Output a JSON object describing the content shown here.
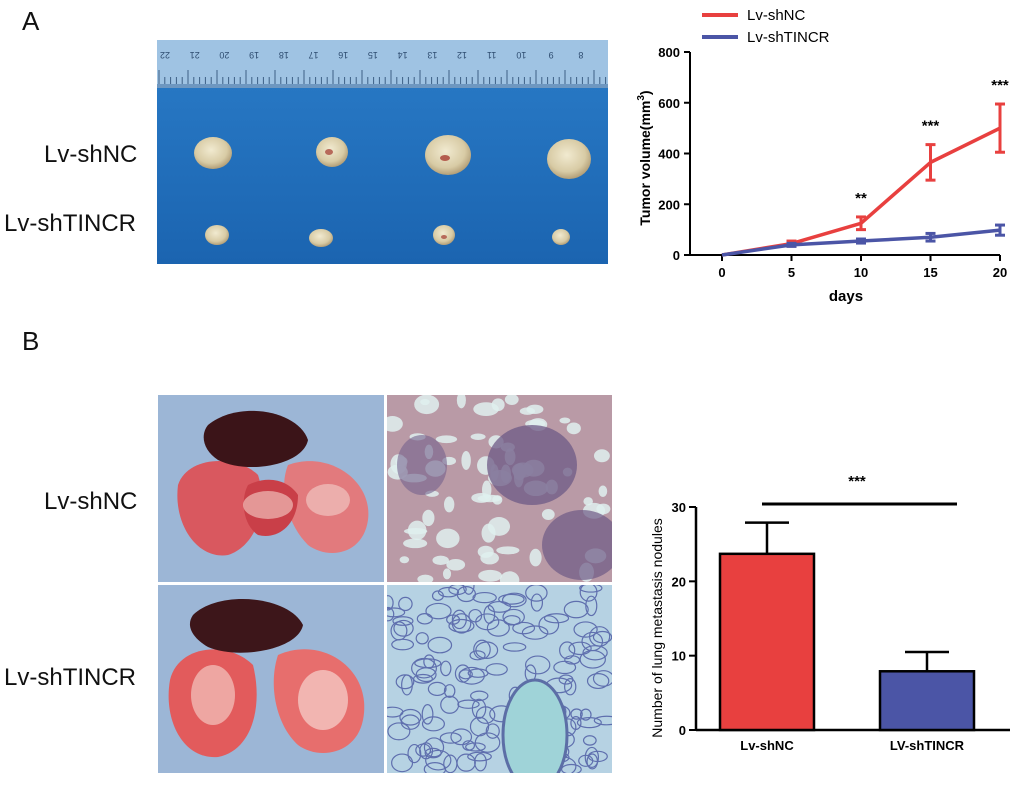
{
  "panels": {
    "a_letter": "A",
    "b_letter": "B"
  },
  "photo_a": {
    "row_labels": [
      "Lv-shNC",
      "Lv-shTINCR"
    ],
    "ruler_ticks": [
      "22",
      "21",
      "20",
      "19",
      "18",
      "17",
      "16",
      "15",
      "14",
      "13",
      "12",
      "11",
      "10",
      "9",
      "8"
    ]
  },
  "photo_b": {
    "row_labels": [
      "Lv-shNC",
      "Lv-shTINCR"
    ]
  },
  "colors": {
    "shnc": "#e8403f",
    "shtincr": "#4b55a6",
    "photo_blue": "#1f6fbf",
    "ruler": "#8fb6d9"
  },
  "chart_data": [
    {
      "type": "line",
      "title": "",
      "xlabel": "days",
      "ylabel": "Tumor volume(mm",
      "ylabel_sup": "3",
      "ylabel_close": ")",
      "x": [
        0,
        5,
        10,
        15,
        20
      ],
      "xticks": [
        "0",
        "5",
        "10",
        "15",
        "20"
      ],
      "yticks": [
        "0",
        "200",
        "400",
        "600",
        "800"
      ],
      "ylim": [
        0,
        800
      ],
      "xlim": [
        0,
        20
      ],
      "legend": "top-left",
      "series": [
        {
          "name": "Lv-shNC",
          "values": [
            0,
            45,
            125,
            365,
            500
          ],
          "errors": [
            0,
            10,
            25,
            70,
            95
          ],
          "color": "#e8403f"
        },
        {
          "name": "Lv-shTINCR",
          "values": [
            0,
            40,
            55,
            70,
            98
          ],
          "errors": [
            0,
            6,
            8,
            15,
            20
          ],
          "color": "#4b55a6"
        }
      ],
      "annotations": [
        {
          "x": 10,
          "label": "**"
        },
        {
          "x": 15,
          "label": "***"
        },
        {
          "x": 20,
          "label": "***"
        }
      ]
    },
    {
      "type": "bar",
      "title": "",
      "xlabel": "",
      "ylabel": "Number of lung metastasis nodules",
      "categories": [
        "Lv-shNC",
        "LV-shTINCR"
      ],
      "values": [
        23.7,
        7.9
      ],
      "errors": [
        4.2,
        2.6
      ],
      "colors": [
        "#e8403f",
        "#4b55a6"
      ],
      "yticks": [
        "0",
        "10",
        "20",
        "30"
      ],
      "ylim": [
        0,
        30
      ],
      "significance": "***"
    }
  ]
}
